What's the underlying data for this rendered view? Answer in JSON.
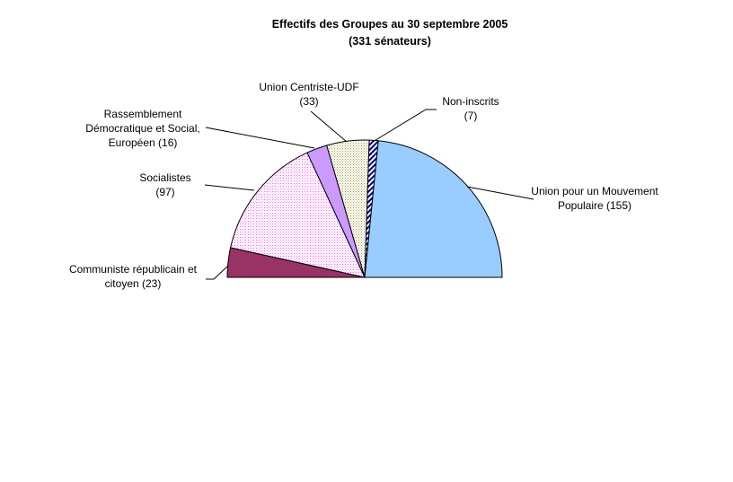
{
  "chart_data": {
    "type": "pie",
    "title": "Effectifs des Groupes au 30 septembre 2005",
    "subtitle": "(331 sénateurs)",
    "half_pie": true,
    "total": 331,
    "slices": [
      {
        "label_lines": [
          "Union pour un Mouvement",
          "Populaire (155)"
        ],
        "value": 155,
        "color": "#99ccff",
        "pattern": "solid"
      },
      {
        "label_lines": [
          "Communiste républicain et",
          "citoyen (23)"
        ],
        "value": 23,
        "color": "#993366",
        "pattern": "solid"
      },
      {
        "label_lines": [
          "Socialistes",
          "(97)"
        ],
        "value": 97,
        "color": "#ffccff",
        "pattern": "dots"
      },
      {
        "label_lines": [
          "Rassemblement",
          "Démocratique et Social,",
          "Européen (16)"
        ],
        "value": 16,
        "color": "#cc99ff",
        "pattern": "solid"
      },
      {
        "label_lines": [
          "Union Centriste-UDF",
          "(33)"
        ],
        "value": 33,
        "color": "#ffffcc",
        "pattern": "dots"
      },
      {
        "label_lines": [
          "Non-inscrits",
          "(7)"
        ],
        "value": 7,
        "color": "#000080",
        "pattern": "stripes"
      }
    ]
  }
}
